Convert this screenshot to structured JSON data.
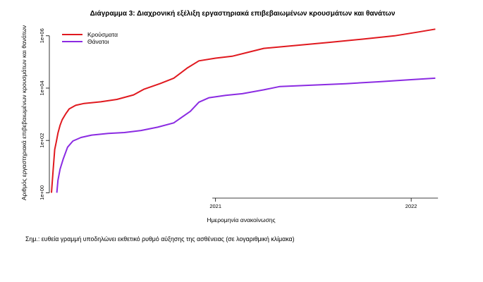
{
  "chart_data": {
    "type": "line",
    "title": "Διάγραμμα 3: Διαχρονική εξέλιξη εργαστηριακά επιβεβαιωμένων κρουσμάτων και θανάτων",
    "xlabel": "Ημερομηνία ανακοίνωσης",
    "ylabel": "Αριθμός εργαστηριακά επιβεβαιωμένων κρουσμάτων και θανάτων",
    "y_scale": "log",
    "y_ticks": [
      {
        "value": 1,
        "label": "1e+00"
      },
      {
        "value": 100,
        "label": "1e+02"
      },
      {
        "value": 10000,
        "label": "1e+04"
      },
      {
        "value": 1000000,
        "label": "1e+06"
      }
    ],
    "x_ticks": [
      {
        "value": "2021-01-01",
        "label": "2021"
      },
      {
        "value": "2022-01-01",
        "label": "2022"
      }
    ],
    "xlim": [
      "2020-02-26",
      "2022-03-01"
    ],
    "ylim": [
      0.8,
      2500000
    ],
    "grid": false,
    "legend_position": "top-left",
    "series": [
      {
        "name": "Κρούσματα",
        "color": "#e0191f",
        "points": [
          [
            "2020-03-01",
            1
          ],
          [
            "2020-03-04",
            7
          ],
          [
            "2020-03-07",
            45
          ],
          [
            "2020-03-10",
            90
          ],
          [
            "2020-03-13",
            190
          ],
          [
            "2020-03-17",
            380
          ],
          [
            "2020-03-21",
            620
          ],
          [
            "2020-03-27",
            1000
          ],
          [
            "2020-04-03",
            1600
          ],
          [
            "2020-04-15",
            2200
          ],
          [
            "2020-05-01",
            2600
          ],
          [
            "2020-06-01",
            3000
          ],
          [
            "2020-07-01",
            3700
          ],
          [
            "2020-08-01",
            5500
          ],
          [
            "2020-08-20",
            9000
          ],
          [
            "2020-09-20",
            15000
          ],
          [
            "2020-10-15",
            24000
          ],
          [
            "2020-11-10",
            60000
          ],
          [
            "2020-12-01",
            110000
          ],
          [
            "2021-01-01",
            140000
          ],
          [
            "2021-02-01",
            165000
          ],
          [
            "2021-03-01",
            230000
          ],
          [
            "2021-04-01",
            330000
          ],
          [
            "2021-06-01",
            430000
          ],
          [
            "2021-08-01",
            560000
          ],
          [
            "2021-10-01",
            740000
          ],
          [
            "2021-12-01",
            1000000
          ],
          [
            "2022-01-15",
            1400000
          ],
          [
            "2022-02-15",
            1800000
          ]
        ]
      },
      {
        "name": "Θάνατοι",
        "color": "#8b2be2",
        "points": [
          [
            "2020-03-11",
            1
          ],
          [
            "2020-03-13",
            3
          ],
          [
            "2020-03-17",
            8
          ],
          [
            "2020-03-23",
            20
          ],
          [
            "2020-03-31",
            55
          ],
          [
            "2020-04-10",
            95
          ],
          [
            "2020-04-25",
            130
          ],
          [
            "2020-05-15",
            160
          ],
          [
            "2020-06-15",
            185
          ],
          [
            "2020-07-15",
            200
          ],
          [
            "2020-08-15",
            240
          ],
          [
            "2020-09-15",
            320
          ],
          [
            "2020-10-15",
            470
          ],
          [
            "2020-11-15",
            1300
          ],
          [
            "2020-12-01",
            2900
          ],
          [
            "2020-12-20",
            4300
          ],
          [
            "2021-01-20",
            5300
          ],
          [
            "2021-02-20",
            6100
          ],
          [
            "2021-04-01",
            8600
          ],
          [
            "2021-05-01",
            11500
          ],
          [
            "2021-07-01",
            13000
          ],
          [
            "2021-09-01",
            14800
          ],
          [
            "2021-11-01",
            17500
          ],
          [
            "2022-01-01",
            21000
          ],
          [
            "2022-02-15",
            24000
          ]
        ]
      }
    ]
  },
  "note": "Σημ.: ευθεία γραμμή υποδηλώνει εκθετικό ρυθμό αύξησης της ασθένειας (σε λογαριθμική κλίμακα)"
}
